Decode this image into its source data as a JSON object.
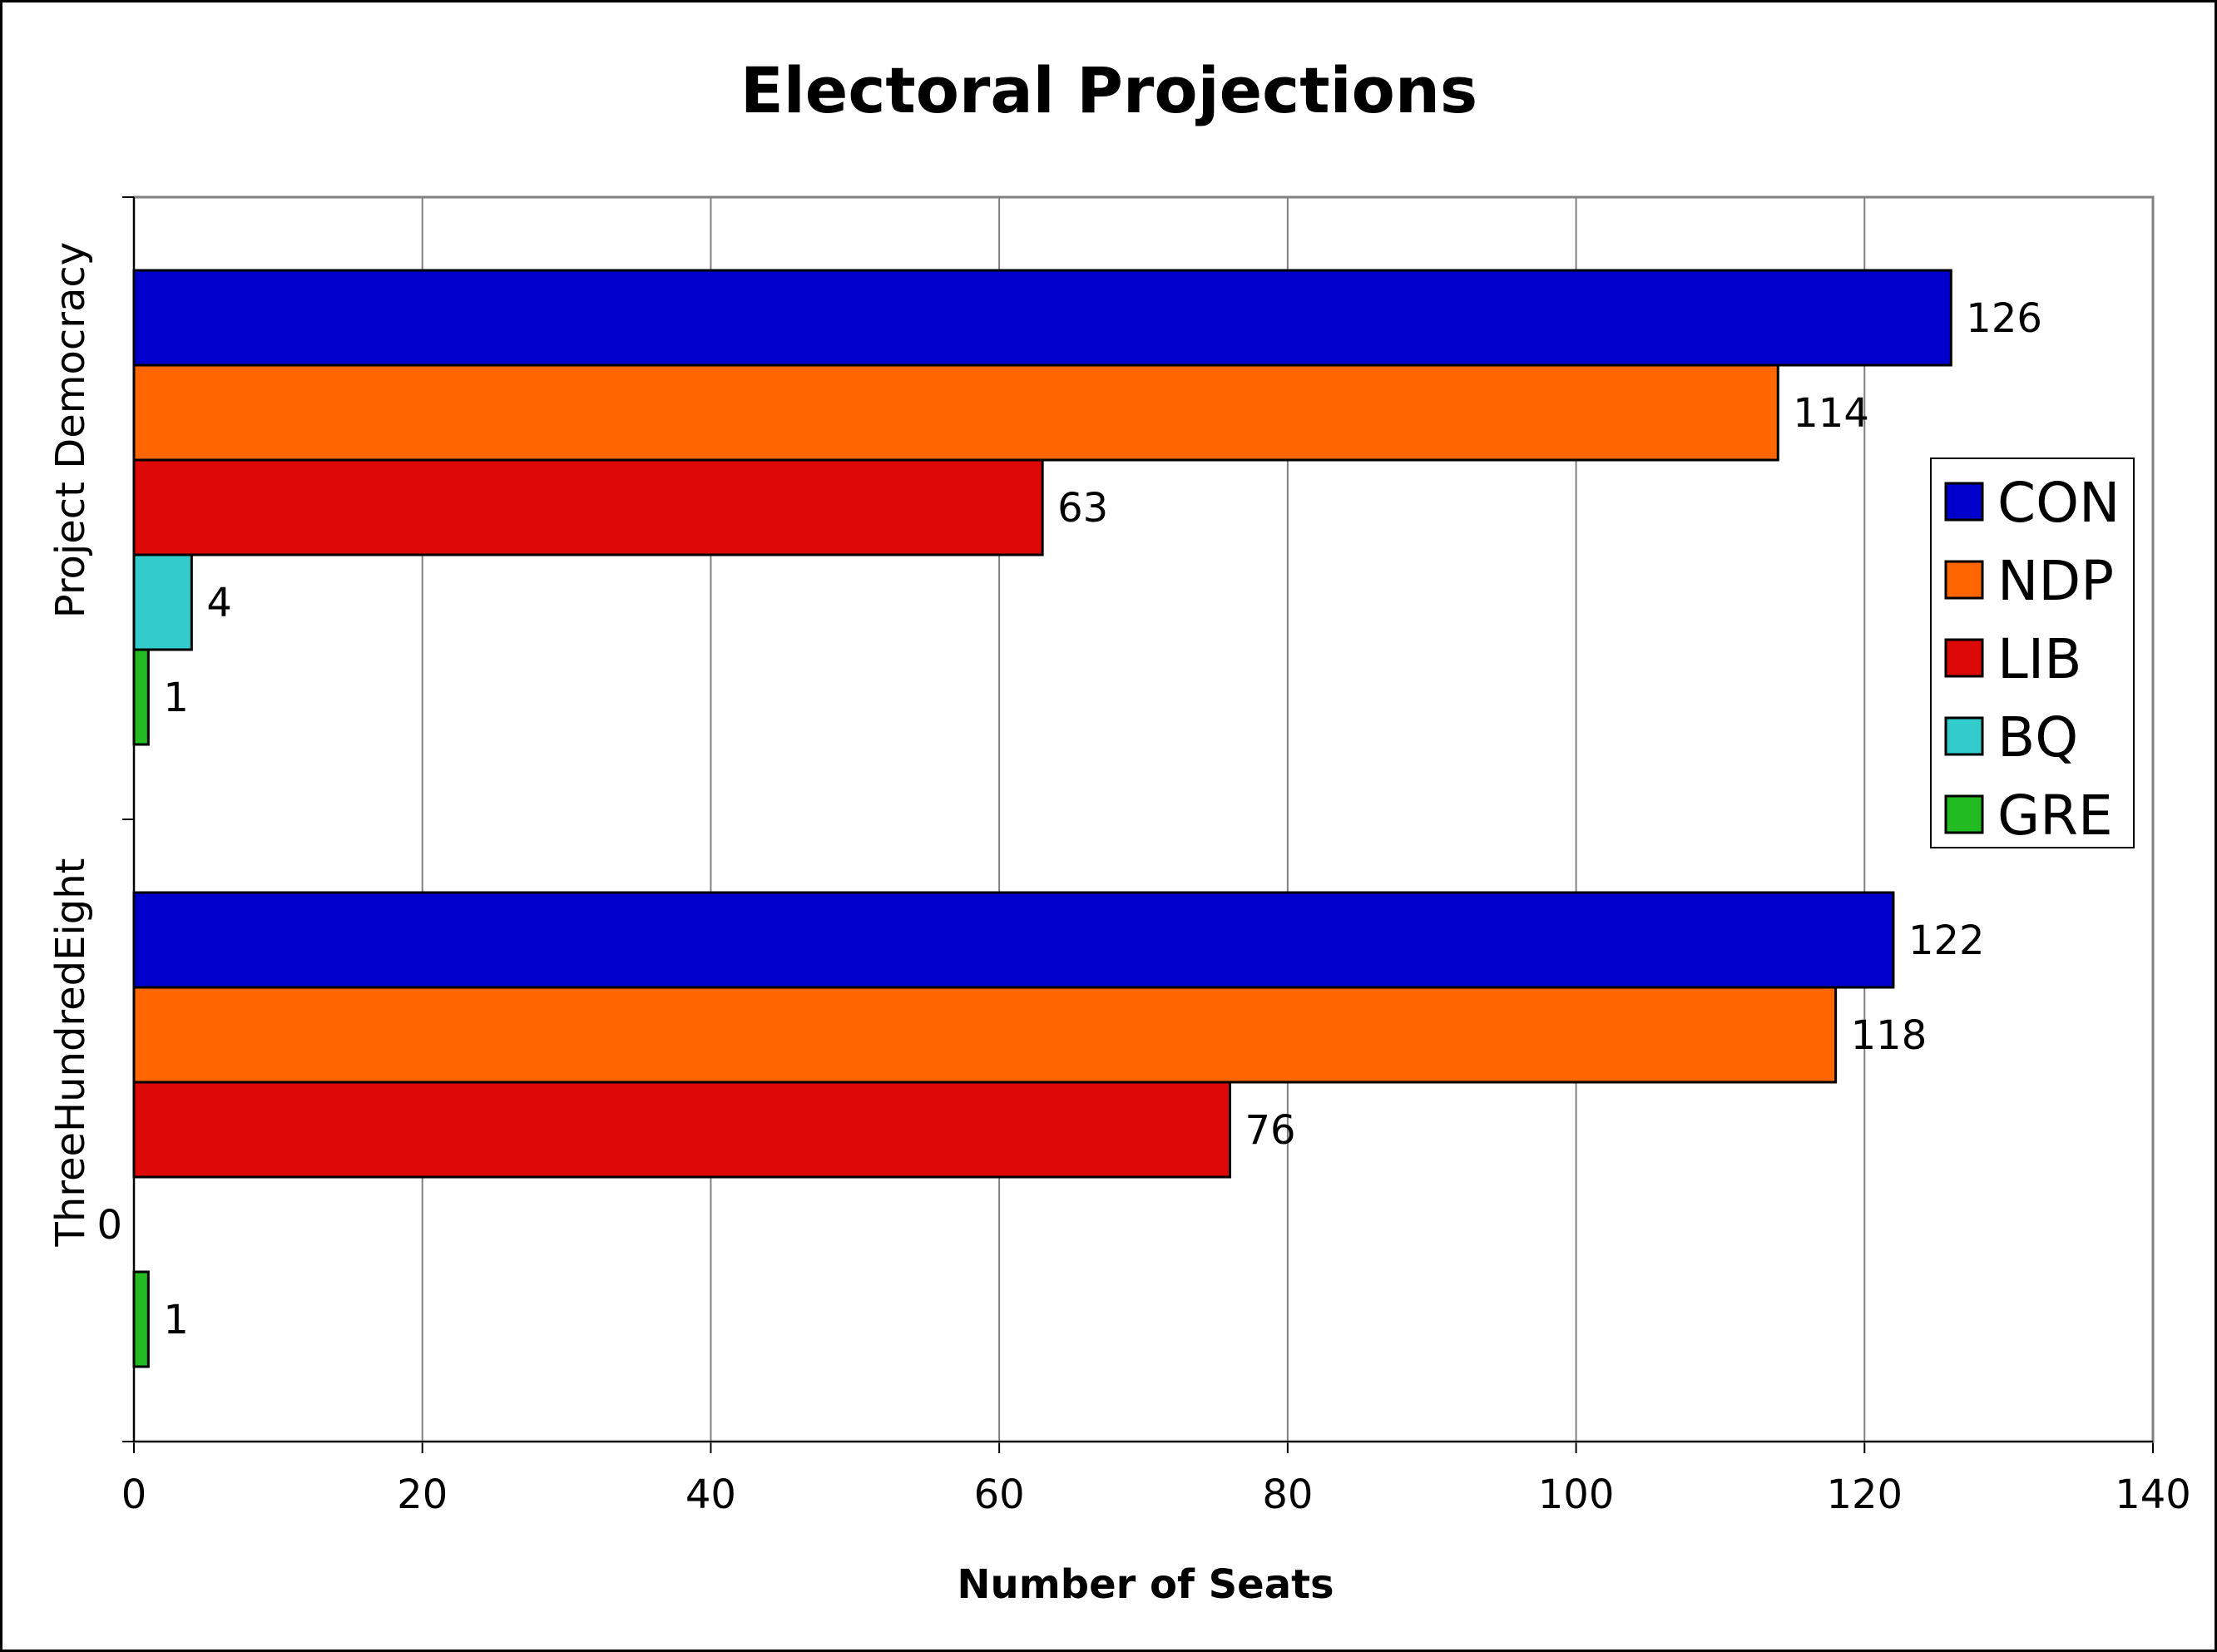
{
  "chart_data": {
    "type": "bar",
    "orientation": "horizontal",
    "title": "Electoral Projections",
    "xlabel": "Number of Seats",
    "ylabel": "",
    "xlim": [
      0,
      140
    ],
    "x_ticks": [
      "0",
      "20",
      "40",
      "60",
      "80",
      "100",
      "120",
      "140"
    ],
    "categories": [
      "Project Democracy",
      "ThreeHundredEight"
    ],
    "series": [
      {
        "name": "CON",
        "color": "#0000CC",
        "values": [
          126,
          122
        ]
      },
      {
        "name": "NDP",
        "color": "#FF6600",
        "values": [
          114,
          118
        ]
      },
      {
        "name": "LIB",
        "color": "#DD0808",
        "values": [
          63,
          76
        ]
      },
      {
        "name": "BQ",
        "color": "#33CCCC",
        "values": [
          4,
          0
        ]
      },
      {
        "name": "GRE",
        "color": "#22BB22",
        "values": [
          1,
          1
        ]
      }
    ],
    "data_labels": [
      [
        "126",
        "114",
        "63",
        "4",
        "1"
      ],
      [
        "122",
        "118",
        "76",
        "0",
        "1"
      ]
    ],
    "grid": "vertical",
    "legend_position": "right"
  }
}
